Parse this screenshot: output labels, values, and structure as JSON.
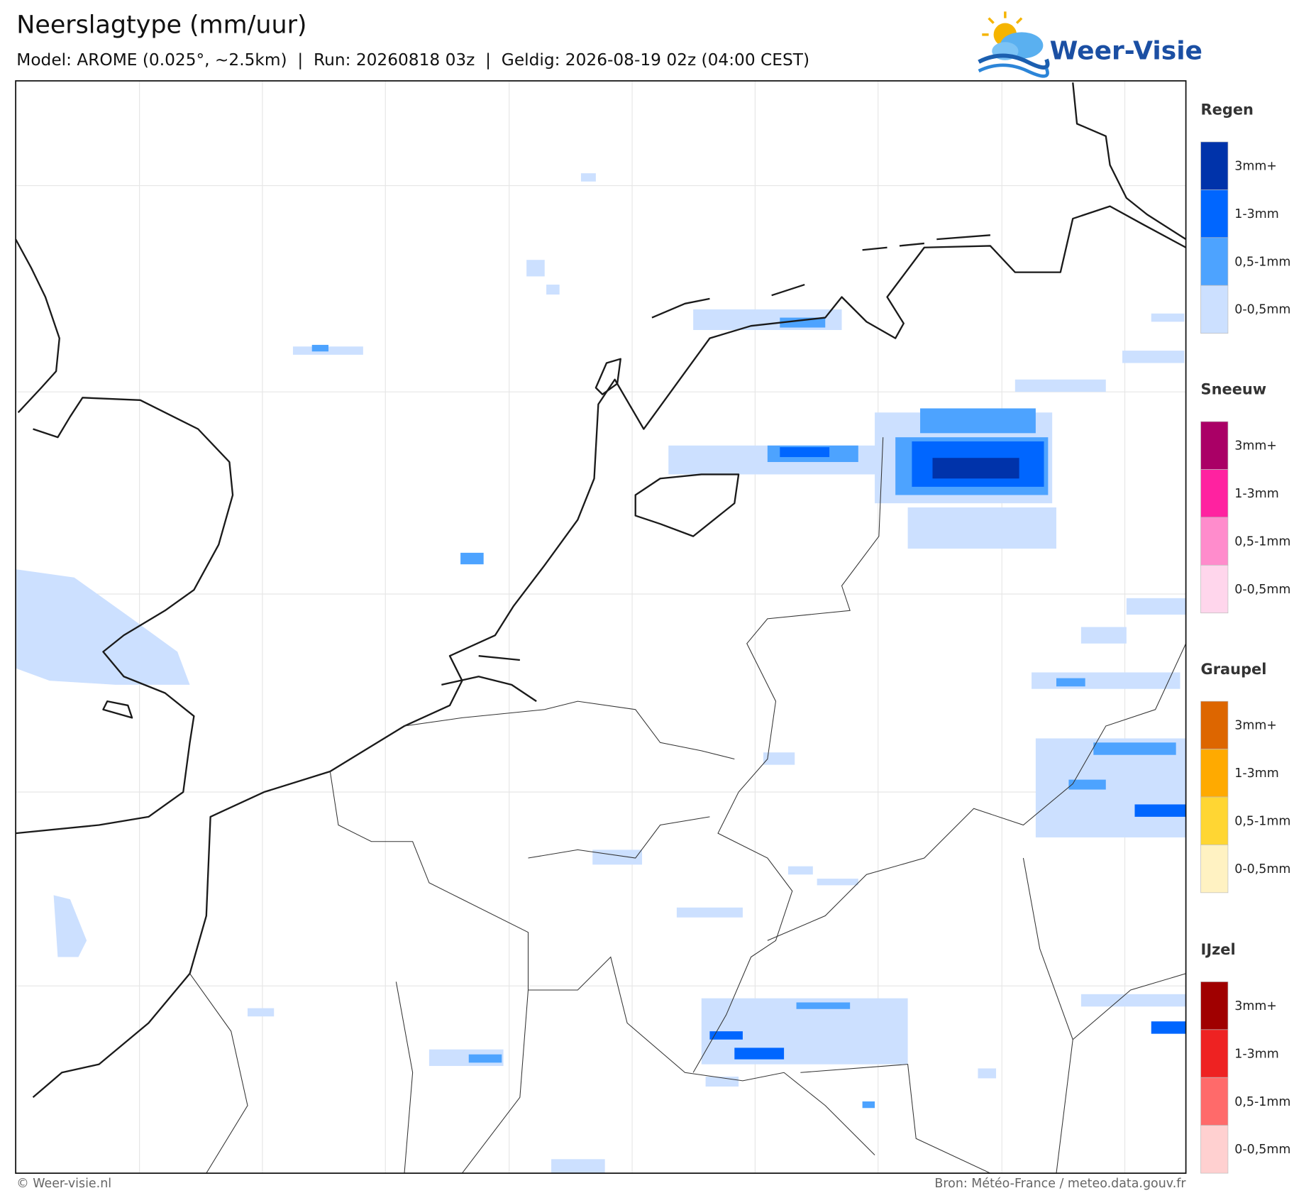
{
  "header": {
    "title": "Neerslagtype (mm/uur)",
    "subtitle": "Model: AROME (0.025°, ~2.5km)  |  Run: 20260818 03z  |  Geldig: 2026-08-19 02z (04:00 CEST)",
    "logo": "Weer-Visie"
  },
  "legend": [
    {
      "title": "Regen",
      "labels": [
        "3mm+",
        "1-3mm",
        "0,5-1mm",
        "0-0,5mm"
      ]
    },
    {
      "title": "Sneeuw",
      "labels": [
        "3mm+",
        "1-3mm",
        "0,5-1mm",
        "0-0,5mm"
      ]
    },
    {
      "title": "Graupel",
      "labels": [
        "3mm+",
        "1-3mm",
        "0,5-1mm",
        "0-0,5mm"
      ]
    },
    {
      "title": "IJzel",
      "labels": [
        "3mm+",
        "1-3mm",
        "0,5-1mm",
        "0-0,5mm"
      ]
    }
  ],
  "footer": {
    "left": "© Weer-visie.nl",
    "right": "Bron: Météo-France / meteo.data.gouv.fr"
  }
}
